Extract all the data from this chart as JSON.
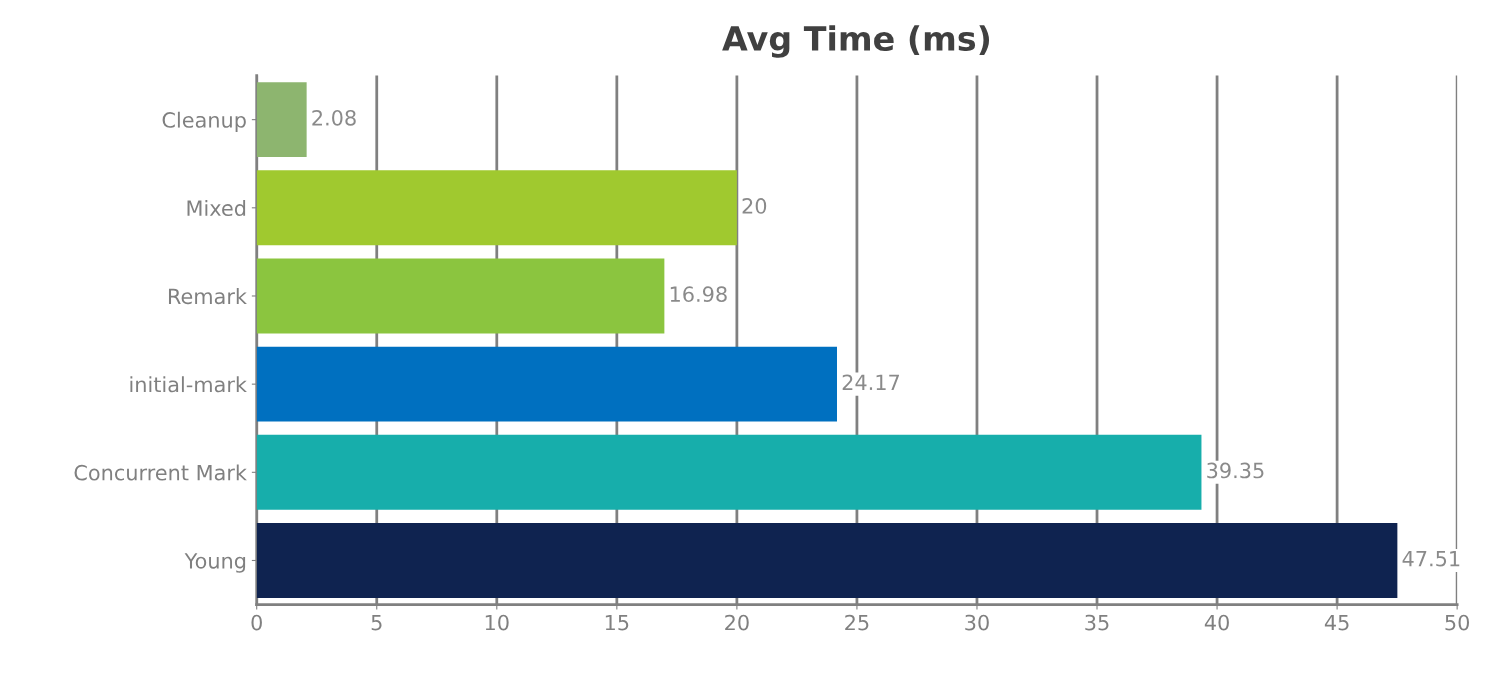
{
  "chart_data": {
    "type": "bar",
    "title": "Avg Time (ms)",
    "orientation": "horizontal",
    "categories": [
      "Cleanup",
      "Mixed",
      "Remark",
      "initial-mark",
      "Concurrent Mark",
      "Young"
    ],
    "values": [
      2.08,
      20,
      16.98,
      24.17,
      39.35,
      47.51
    ],
    "colors": [
      "#8db56f",
      "#a0c92f",
      "#8bc53f",
      "#0070c0",
      "#17aeab",
      "#0f2350"
    ],
    "xlim": [
      0,
      50
    ],
    "xticks": [
      0,
      5,
      10,
      15,
      20,
      25,
      30,
      35,
      40,
      45,
      50
    ],
    "grid": "x",
    "data_labels": true
  }
}
